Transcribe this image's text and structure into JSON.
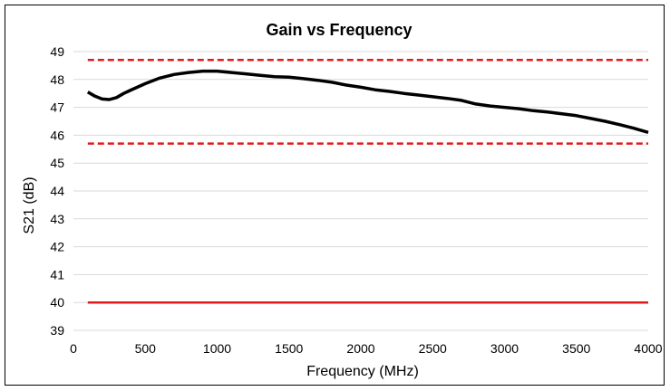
{
  "chart_data": {
    "type": "line",
    "title": "Gain vs Frequency",
    "xlabel": "Frequency (MHz)",
    "ylabel": "S21 (dB)",
    "xlim": [
      0,
      4000
    ],
    "ylim": [
      39,
      49
    ],
    "xticks": [
      0,
      500,
      1000,
      1500,
      2000,
      2500,
      3000,
      3500,
      4000
    ],
    "yticks": [
      39,
      40,
      41,
      42,
      43,
      44,
      45,
      46,
      47,
      48,
      49
    ],
    "grid": "horizontal",
    "legend": "none",
    "series": [
      {
        "color": "#000000",
        "style": "solid",
        "x": [
          100,
          150,
          200,
          250,
          300,
          350,
          400,
          500,
          600,
          700,
          800,
          900,
          1000,
          1100,
          1200,
          1300,
          1400,
          1500,
          1600,
          1700,
          1800,
          1900,
          2000,
          2100,
          2200,
          2300,
          2400,
          2500,
          2600,
          2700,
          2800,
          2900,
          3000,
          3100,
          3200,
          3300,
          3400,
          3500,
          3600,
          3700,
          3800,
          3900,
          4000
        ],
        "y": [
          47.55,
          47.4,
          47.3,
          47.28,
          47.35,
          47.5,
          47.62,
          47.85,
          48.05,
          48.18,
          48.25,
          48.3,
          48.3,
          48.25,
          48.2,
          48.15,
          48.1,
          48.08,
          48.03,
          47.97,
          47.9,
          47.8,
          47.72,
          47.63,
          47.57,
          47.5,
          47.44,
          47.38,
          47.32,
          47.25,
          47.12,
          47.05,
          47.0,
          46.95,
          46.88,
          46.83,
          46.77,
          46.7,
          46.6,
          46.5,
          46.38,
          46.25,
          46.1
        ]
      },
      {
        "color": "#e31a1c",
        "style": "dashed",
        "x": [
          100,
          4000
        ],
        "y": [
          48.7,
          48.7
        ]
      },
      {
        "color": "#e31a1c",
        "style": "dashed",
        "x": [
          100,
          4000
        ],
        "y": [
          45.7,
          45.7
        ]
      },
      {
        "color": "#e31a1c",
        "style": "solid",
        "x": [
          100,
          4000
        ],
        "y": [
          40.0,
          40.0
        ]
      }
    ]
  }
}
